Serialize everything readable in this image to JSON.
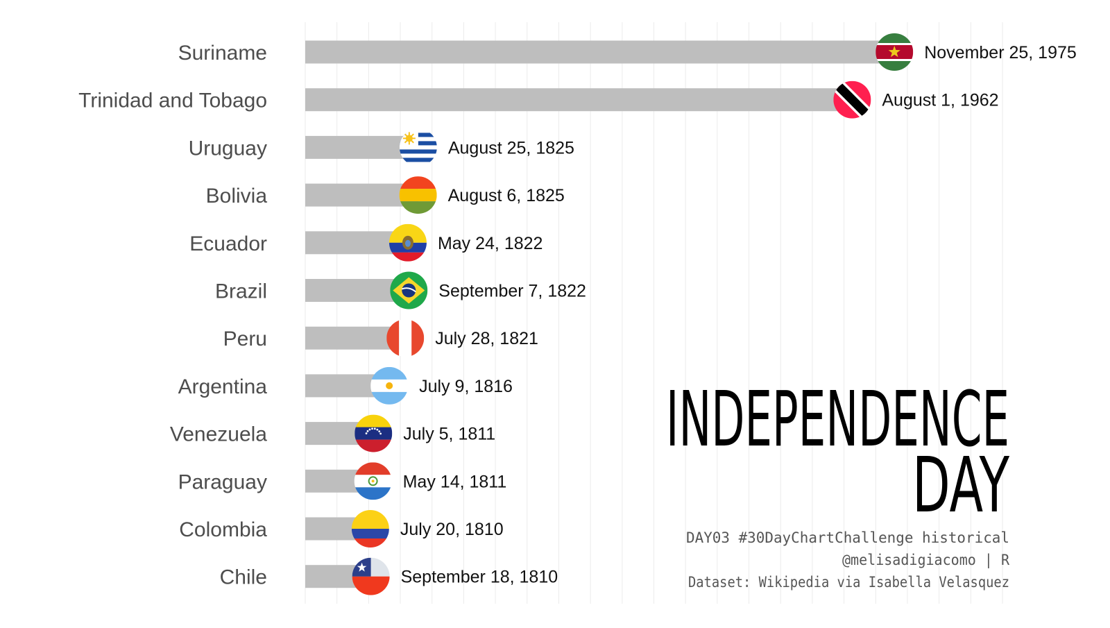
{
  "title": {
    "line1": "INDEPENDENCE",
    "line2": "DAY"
  },
  "caption": {
    "line1": "DAY03 #30DayChartChallenge historical",
    "line2": "@melisadigiacomo | R",
    "line3": "Dataset: Wikipedia via Isabella Velasquez"
  },
  "colors": {
    "bar": "#bebebe",
    "gridline": "#ebebeb",
    "country_label": "#4d4d4d",
    "date_label": "#111111"
  },
  "chart_data": {
    "type": "bar",
    "orientation": "horizontal",
    "value_unit": "year",
    "axis_range": [
      1790,
      2010
    ],
    "grid": true,
    "categories": [
      "Suriname",
      "Trinidad and Tobago",
      "Uruguay",
      "Bolivia",
      "Ecuador",
      "Brazil",
      "Peru",
      "Argentina",
      "Venezuela",
      "Paraguay",
      "Colombia",
      "Chile"
    ],
    "values": [
      1975.9,
      1962.58,
      1825.65,
      1825.6,
      1822.39,
      1822.68,
      1821.57,
      1816.52,
      1811.51,
      1811.37,
      1810.55,
      1810.71
    ],
    "dates": [
      "November 25, 1975",
      "August 1, 1962",
      "August 25, 1825",
      "August 6, 1825",
      "May 24, 1822",
      "September 7, 1822",
      "July 28, 1821",
      "July 9, 1816",
      "July 5, 1811",
      "May 14, 1811",
      "July 20, 1810",
      "September 18, 1810"
    ],
    "flags": [
      "suriname-flag-icon",
      "trinidad-and-tobago-flag-icon",
      "uruguay-flag-icon",
      "bolivia-flag-icon",
      "ecuador-flag-icon",
      "brazil-flag-icon",
      "peru-flag-icon",
      "argentina-flag-icon",
      "venezuela-flag-icon",
      "paraguay-flag-icon",
      "colombia-flag-icon",
      "chile-flag-icon"
    ]
  }
}
